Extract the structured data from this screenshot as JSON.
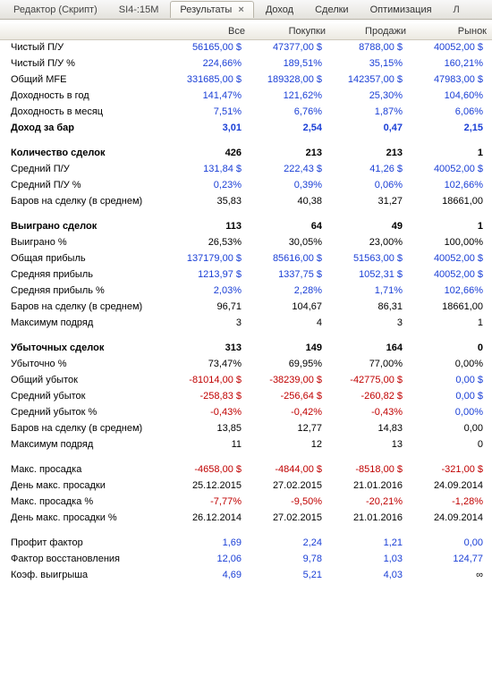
{
  "tabs": {
    "editor": "Редактор (Скрипт)",
    "instr": "SI4-:15M",
    "results": "Результаты",
    "income": "Доход",
    "trades": "Сделки",
    "optim": "Оптимизация",
    "last": "Л"
  },
  "columns": [
    "",
    "Все",
    "Покупки",
    "Продажи",
    "Рынок"
  ],
  "rows": [
    {
      "label": "Чистый П/У",
      "vals": [
        "56165,00 $",
        "47377,00 $",
        "8788,00 $",
        "40052,00 $"
      ],
      "cls": [
        "blue",
        "blue",
        "blue",
        "blue"
      ]
    },
    {
      "label": "Чистый П/У %",
      "vals": [
        "224,66%",
        "189,51%",
        "35,15%",
        "160,21%"
      ],
      "cls": [
        "blue",
        "blue",
        "blue",
        "blue"
      ]
    },
    {
      "label": "Общий MFE",
      "vals": [
        "331685,00 $",
        "189328,00 $",
        "142357,00 $",
        "47983,00 $"
      ],
      "cls": [
        "blue",
        "blue",
        "blue",
        "blue"
      ]
    },
    {
      "label": "Доходность в год",
      "vals": [
        "141,47%",
        "121,62%",
        "25,30%",
        "104,60%"
      ],
      "cls": [
        "blue",
        "blue",
        "blue",
        "blue"
      ]
    },
    {
      "label": "Доходность в месяц",
      "vals": [
        "7,51%",
        "6,76%",
        "1,87%",
        "6,06%"
      ],
      "cls": [
        "blue",
        "blue",
        "blue",
        "blue"
      ]
    },
    {
      "label": "Доход за бар",
      "vals": [
        "3,01",
        "2,54",
        "0,47",
        "2,15"
      ],
      "cls": [
        "blue",
        "blue",
        "blue",
        "blue"
      ],
      "bold": true
    },
    {
      "spacer": true
    },
    {
      "label": "Количество сделок",
      "vals": [
        "426",
        "213",
        "213",
        "1"
      ],
      "cls": [
        "black",
        "black",
        "black",
        "black"
      ],
      "bold": true
    },
    {
      "label": "Средний П/У",
      "vals": [
        "131,84 $",
        "222,43 $",
        "41,26 $",
        "40052,00 $"
      ],
      "cls": [
        "blue",
        "blue",
        "blue",
        "blue"
      ]
    },
    {
      "label": "Средний П/У %",
      "vals": [
        "0,23%",
        "0,39%",
        "0,06%",
        "102,66%"
      ],
      "cls": [
        "blue",
        "blue",
        "blue",
        "blue"
      ]
    },
    {
      "label": "Баров на сделку (в среднем)",
      "vals": [
        "35,83",
        "40,38",
        "31,27",
        "18661,00"
      ],
      "cls": [
        "black",
        "black",
        "black",
        "black"
      ]
    },
    {
      "spacer": true
    },
    {
      "label": "Выиграно сделок",
      "vals": [
        "113",
        "64",
        "49",
        "1"
      ],
      "cls": [
        "black",
        "black",
        "black",
        "black"
      ],
      "bold": true
    },
    {
      "label": "Выиграно %",
      "vals": [
        "26,53%",
        "30,05%",
        "23,00%",
        "100,00%"
      ],
      "cls": [
        "black",
        "black",
        "black",
        "black"
      ]
    },
    {
      "label": "Общая прибыль",
      "vals": [
        "137179,00 $",
        "85616,00 $",
        "51563,00 $",
        "40052,00 $"
      ],
      "cls": [
        "blue",
        "blue",
        "blue",
        "blue"
      ]
    },
    {
      "label": "Средняя прибыль",
      "vals": [
        "1213,97 $",
        "1337,75 $",
        "1052,31 $",
        "40052,00 $"
      ],
      "cls": [
        "blue",
        "blue",
        "blue",
        "blue"
      ]
    },
    {
      "label": "Средняя прибыль %",
      "vals": [
        "2,03%",
        "2,28%",
        "1,71%",
        "102,66%"
      ],
      "cls": [
        "blue",
        "blue",
        "blue",
        "blue"
      ]
    },
    {
      "label": "Баров на сделку (в среднем)",
      "vals": [
        "96,71",
        "104,67",
        "86,31",
        "18661,00"
      ],
      "cls": [
        "black",
        "black",
        "black",
        "black"
      ]
    },
    {
      "label": "Максимум подряд",
      "vals": [
        "3",
        "4",
        "3",
        "1"
      ],
      "cls": [
        "black",
        "black",
        "black",
        "black"
      ]
    },
    {
      "spacer": true
    },
    {
      "label": "Убыточных сделок",
      "vals": [
        "313",
        "149",
        "164",
        "0"
      ],
      "cls": [
        "black",
        "black",
        "black",
        "black"
      ],
      "bold": true
    },
    {
      "label": "Убыточно %",
      "vals": [
        "73,47%",
        "69,95%",
        "77,00%",
        "0,00%"
      ],
      "cls": [
        "black",
        "black",
        "black",
        "black"
      ]
    },
    {
      "label": "Общий убыток",
      "vals": [
        "-81014,00 $",
        "-38239,00 $",
        "-42775,00 $",
        "0,00 $"
      ],
      "cls": [
        "red",
        "red",
        "red",
        "blue"
      ]
    },
    {
      "label": "Средний убыток",
      "vals": [
        "-258,83 $",
        "-256,64 $",
        "-260,82 $",
        "0,00 $"
      ],
      "cls": [
        "red",
        "red",
        "red",
        "blue"
      ]
    },
    {
      "label": "Средний убыток %",
      "vals": [
        "-0,43%",
        "-0,42%",
        "-0,43%",
        "0,00%"
      ],
      "cls": [
        "red",
        "red",
        "red",
        "blue"
      ]
    },
    {
      "label": "Баров на сделку (в среднем)",
      "vals": [
        "13,85",
        "12,77",
        "14,83",
        "0,00"
      ],
      "cls": [
        "black",
        "black",
        "black",
        "black"
      ]
    },
    {
      "label": "Максимум подряд",
      "vals": [
        "11",
        "12",
        "13",
        "0"
      ],
      "cls": [
        "black",
        "black",
        "black",
        "black"
      ]
    },
    {
      "spacer": true
    },
    {
      "label": "Макс. просадка",
      "vals": [
        "-4658,00 $",
        "-4844,00 $",
        "-8518,00 $",
        "-321,00 $"
      ],
      "cls": [
        "red",
        "red",
        "red",
        "red"
      ]
    },
    {
      "label": "День макс. просадки",
      "vals": [
        "25.12.2015",
        "27.02.2015",
        "21.01.2016",
        "24.09.2014"
      ],
      "cls": [
        "black",
        "black",
        "black",
        "black"
      ]
    },
    {
      "label": "Макс. просадка %",
      "vals": [
        "-7,77%",
        "-9,50%",
        "-20,21%",
        "-1,28%"
      ],
      "cls": [
        "red",
        "red",
        "red",
        "red"
      ]
    },
    {
      "label": "День макс. просадки %",
      "vals": [
        "26.12.2014",
        "27.02.2015",
        "21.01.2016",
        "24.09.2014"
      ],
      "cls": [
        "black",
        "black",
        "black",
        "black"
      ]
    },
    {
      "spacer": true
    },
    {
      "label": "Профит фактор",
      "vals": [
        "1,69",
        "2,24",
        "1,21",
        "0,00"
      ],
      "cls": [
        "blue",
        "blue",
        "blue",
        "blue"
      ]
    },
    {
      "label": "Фактор восстановления",
      "vals": [
        "12,06",
        "9,78",
        "1,03",
        "124,77"
      ],
      "cls": [
        "blue",
        "blue",
        "blue",
        "blue"
      ]
    },
    {
      "label": "Коэф. выигрыша",
      "vals": [
        "4,69",
        "5,21",
        "4,03",
        "∞"
      ],
      "cls": [
        "blue",
        "blue",
        "blue",
        "black"
      ]
    }
  ]
}
